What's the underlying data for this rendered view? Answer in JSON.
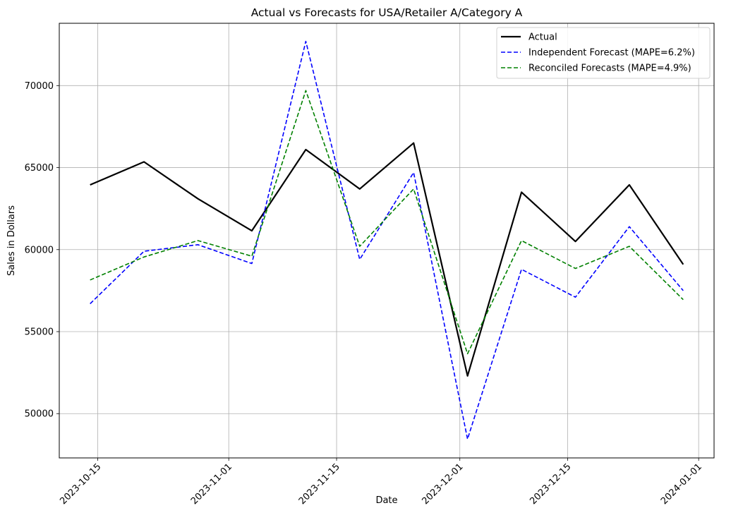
{
  "chart_data": {
    "type": "line",
    "title": "Actual vs Forecasts for USA/Retailer A/Category A",
    "xlabel": "Date",
    "ylabel": "Sales in Dollars",
    "x": [
      "2023-10-14",
      "2023-10-21",
      "2023-10-28",
      "2023-11-04",
      "2023-11-11",
      "2023-11-18",
      "2023-11-25",
      "2023-12-02",
      "2023-12-09",
      "2023-12-16",
      "2023-12-23",
      "2023-12-30"
    ],
    "xlim": [
      "2023-10-10",
      "2024-01-03"
    ],
    "ylim": [
      47300,
      73800
    ],
    "xticks": [
      {
        "date": "2023-10-15",
        "label": "2023-10-15"
      },
      {
        "date": "2023-11-01",
        "label": "2023-11-01"
      },
      {
        "date": "2023-11-15",
        "label": "2023-11-15"
      },
      {
        "date": "2023-12-01",
        "label": "2023-12-01"
      },
      {
        "date": "2023-12-15",
        "label": "2023-12-15"
      },
      {
        "date": "2024-01-01",
        "label": "2024-01-01"
      }
    ],
    "yticks": [
      50000,
      55000,
      60000,
      65000,
      70000
    ],
    "grid": true,
    "legend_position": "top-right",
    "series": [
      {
        "name": "Actual",
        "color": "#000000",
        "style": "solid",
        "values": [
          63950,
          65350,
          63100,
          61150,
          66100,
          63700,
          66500,
          52300,
          63500,
          60500,
          63950,
          59100
        ]
      },
      {
        "name": "Independent Forecast (MAPE=6.2%)",
        "color": "#0000ff",
        "style": "dashed",
        "values": [
          56700,
          59900,
          60300,
          59150,
          72700,
          59400,
          64700,
          48450,
          58800,
          57100,
          61400,
          57500
        ]
      },
      {
        "name": "Reconciled Forecasts (MAPE=4.9%)",
        "color": "#008000",
        "style": "dashed",
        "values": [
          58150,
          59550,
          60550,
          59600,
          69700,
          60200,
          63700,
          53650,
          60550,
          58850,
          60200,
          56950
        ]
      }
    ]
  }
}
